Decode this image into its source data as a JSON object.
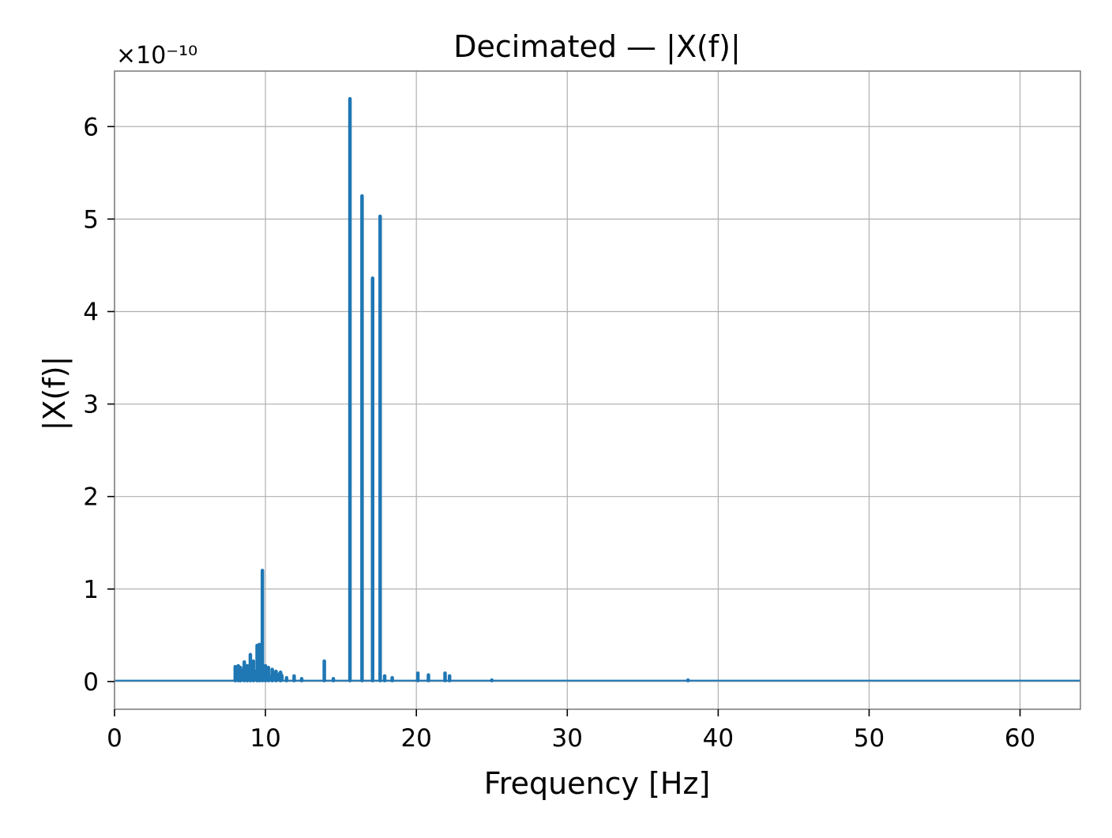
{
  "chart_data": {
    "type": "line",
    "title": "Decimated — |X(f)|",
    "xlabel": "Frequency [Hz]",
    "ylabel": "|X(f)|",
    "y_offset_label": "×10⁻¹⁰",
    "y_scale": 1e-10,
    "xlim": [
      0,
      64
    ],
    "ylim": [
      -0.3,
      6.6
    ],
    "xticks": [
      0,
      10,
      20,
      30,
      40,
      50,
      60
    ],
    "xtick_labels": [
      "0",
      "10",
      "20",
      "30",
      "40",
      "50",
      "60"
    ],
    "yticks": [
      0,
      1,
      2,
      3,
      4,
      5,
      6
    ],
    "ytick_labels": [
      "0",
      "1",
      "2",
      "3",
      "4",
      "5",
      "6"
    ],
    "grid": true,
    "legend": "none",
    "series": [
      {
        "color": "#1f77b4",
        "baseline": 0.01,
        "peaks": [
          {
            "x": 8.0,
            "y": 0.16
          },
          {
            "x": 8.2,
            "y": 0.17
          },
          {
            "x": 8.35,
            "y": 0.15
          },
          {
            "x": 8.6,
            "y": 0.21
          },
          {
            "x": 8.8,
            "y": 0.17
          },
          {
            "x": 9.0,
            "y": 0.29
          },
          {
            "x": 9.2,
            "y": 0.22
          },
          {
            "x": 9.45,
            "y": 0.39
          },
          {
            "x": 9.6,
            "y": 0.4
          },
          {
            "x": 9.8,
            "y": 1.2
          },
          {
            "x": 10.0,
            "y": 0.17
          },
          {
            "x": 10.2,
            "y": 0.15
          },
          {
            "x": 10.45,
            "y": 0.13
          },
          {
            "x": 10.7,
            "y": 0.11
          },
          {
            "x": 11.0,
            "y": 0.1
          },
          {
            "x": 11.4,
            "y": 0.04
          },
          {
            "x": 11.9,
            "y": 0.06
          },
          {
            "x": 12.4,
            "y": 0.03
          },
          {
            "x": 13.9,
            "y": 0.22
          },
          {
            "x": 14.5,
            "y": 0.03
          },
          {
            "x": 15.6,
            "y": 6.3
          },
          {
            "x": 16.4,
            "y": 5.25
          },
          {
            "x": 17.1,
            "y": 4.36
          },
          {
            "x": 17.6,
            "y": 5.03
          },
          {
            "x": 17.9,
            "y": 0.06
          },
          {
            "x": 18.4,
            "y": 0.04
          },
          {
            "x": 20.1,
            "y": 0.09
          },
          {
            "x": 20.8,
            "y": 0.07
          },
          {
            "x": 21.9,
            "y": 0.09
          },
          {
            "x": 22.2,
            "y": 0.06
          },
          {
            "x": 25.0,
            "y": 0.015
          },
          {
            "x": 38.0,
            "y": 0.015
          }
        ],
        "noise_band": [
          8.0,
          11.2
        ]
      }
    ]
  }
}
